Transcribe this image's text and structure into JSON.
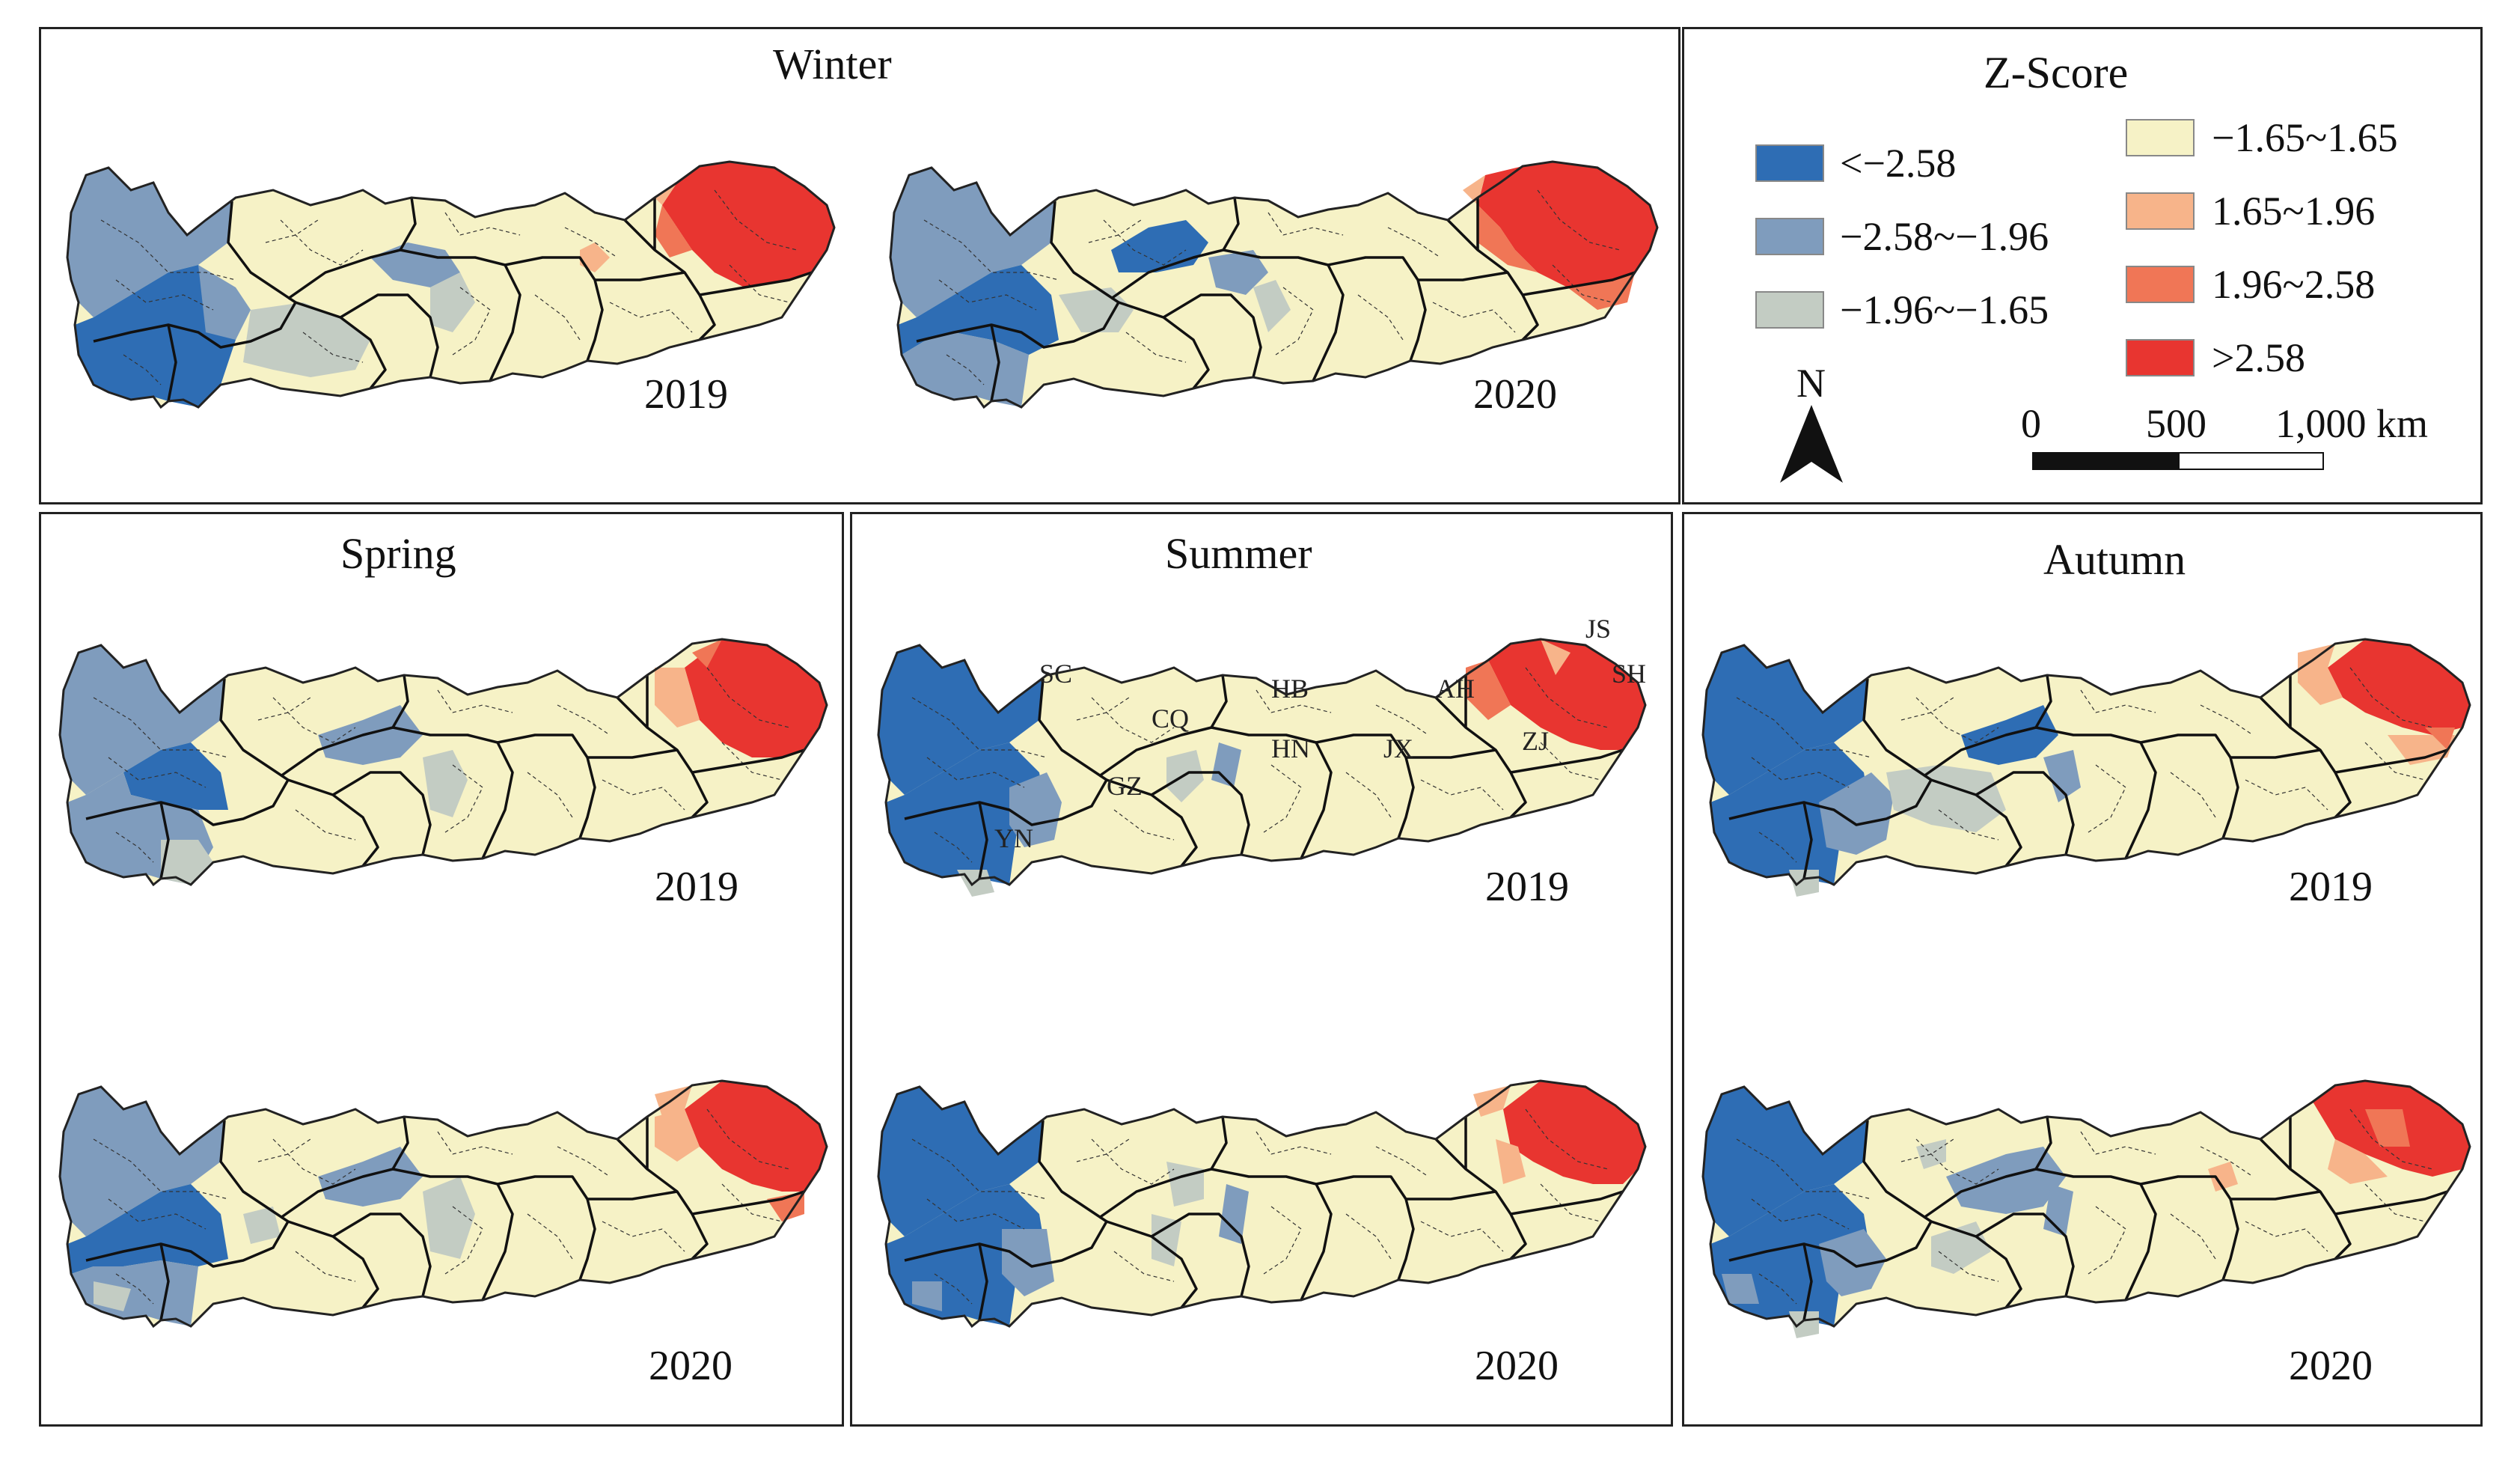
{
  "panels": {
    "winter": {
      "title": "Winter",
      "year_a": "2019",
      "year_b": "2020"
    },
    "spring": {
      "title": "Spring",
      "year_a": "2019",
      "year_b": "2020"
    },
    "summer": {
      "title": "Summer",
      "year_a": "2019",
      "year_b": "2020"
    },
    "autumn": {
      "title": "Autumn",
      "year_a": "2019",
      "year_b": "2020"
    }
  },
  "legend": {
    "title": "Z-Score",
    "classes": [
      {
        "label": "<−2.58",
        "color": "#2e6db4"
      },
      {
        "label": "−2.58~−1.96",
        "color": "#7f9cbd"
      },
      {
        "label": "−1.96~−1.65",
        "color": "#c3ccc3"
      },
      {
        "label": "−1.65~1.65",
        "color": "#f6f2c6"
      },
      {
        "label": "1.65~1.96",
        "color": "#f7b48a"
      },
      {
        "label": "1.96~2.58",
        "color": "#f07656"
      },
      {
        "label": ">2.58",
        "color": "#e83530"
      }
    ],
    "north": "N",
    "scale_ticks": [
      "0",
      "500",
      "1,000 km"
    ]
  },
  "provinces": {
    "sc": "SC",
    "cq": "CQ",
    "hb": "HB",
    "ah": "AH",
    "js": "JS",
    "sh": "SH",
    "hn": "HN",
    "jx": "JX",
    "zj": "ZJ",
    "gz": "GZ",
    "yn": "YN"
  }
}
